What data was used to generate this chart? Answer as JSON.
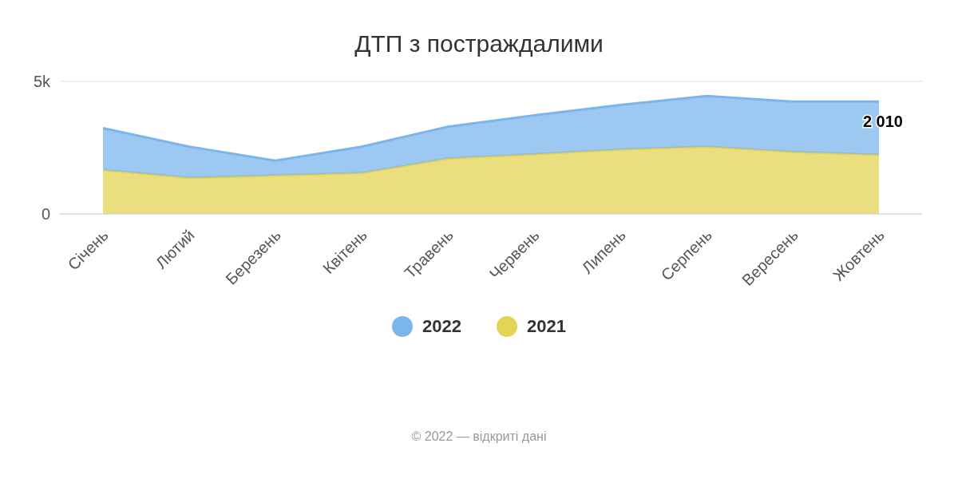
{
  "chart_data": {
    "type": "area",
    "title": "ДТП з постраждалими",
    "stacked": true,
    "categories": [
      "Січень",
      "Лютий",
      "Березень",
      "Квітень",
      "Травень",
      "Червень",
      "Липень",
      "Серпень",
      "Вересень",
      "Жовтень"
    ],
    "series": [
      {
        "name": "2021",
        "color": "#e4d354",
        "values": [
          1660,
          1360,
          1450,
          1540,
          2090,
          2250,
          2430,
          2540,
          2340,
          2230
        ]
      },
      {
        "name": "2022",
        "color": "#7cb5ec",
        "values": [
          1580,
          1180,
          560,
          1000,
          1200,
          1470,
          1680,
          1910,
          1900,
          2010
        ],
        "value_labels": [
          null,
          null,
          null,
          null,
          null,
          null,
          null,
          null,
          null,
          "2 010"
        ]
      }
    ],
    "ylim": [
      0,
      5000
    ],
    "yticks": [
      0,
      {
        "value": 5000,
        "label": "5k"
      }
    ],
    "grid": "y",
    "legend": "bottom",
    "marker": "none",
    "line_style": "solid",
    "annotations": [
      "© 2022 — відкриті дані"
    ]
  }
}
